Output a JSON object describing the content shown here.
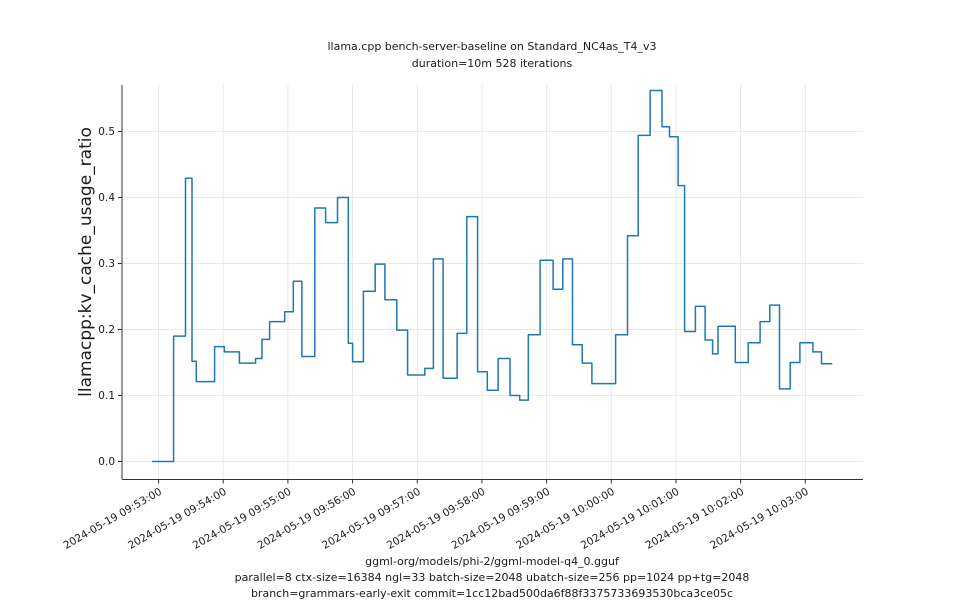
{
  "chart_data": {
    "type": "line",
    "step": true,
    "grid": true,
    "legend": "none",
    "title": "llama.cpp bench-server-baseline on Standard_NC4as_T4_v3",
    "subtitle": "duration=10m 528 iterations",
    "ylabel": "llamacpp:kv_cache_usage_ratio",
    "xlabel_lines": {
      "line1": "ggml-org/models/phi-2/ggml-model-q4_0.gguf",
      "line2": "parallel=8 ctx-size=16384 ngl=33 batch-size=2048 ubatch-size=256 pp=1024 pp+tg=2048",
      "line3": "branch=grammars-early-exit commit=1cc12bad500da6f88f3375733693530bca3ce05c"
    },
    "x_ticks": [
      {
        "t": 0,
        "label": "2024-05-19 09:53:00"
      },
      {
        "t": 60,
        "label": "2024-05-19 09:54:00"
      },
      {
        "t": 120,
        "label": "2024-05-19 09:55:00"
      },
      {
        "t": 180,
        "label": "2024-05-19 09:56:00"
      },
      {
        "t": 240,
        "label": "2024-05-19 09:57:00"
      },
      {
        "t": 300,
        "label": "2024-05-19 09:58:00"
      },
      {
        "t": 360,
        "label": "2024-05-19 09:59:00"
      },
      {
        "t": 420,
        "label": "2024-05-19 10:00:00"
      },
      {
        "t": 480,
        "label": "2024-05-19 10:01:00"
      },
      {
        "t": 540,
        "label": "2024-05-19 10:02:00"
      },
      {
        "t": 600,
        "label": "2024-05-19 10:03:00"
      }
    ],
    "y_ticks": [
      "0.0",
      "0.1",
      "0.2",
      "0.3",
      "0.4",
      "0.5"
    ],
    "xlim_seconds": [
      -33.9,
      653.5
    ],
    "ylim": [
      -0.0273,
      0.5704
    ],
    "series": [
      {
        "name": "llamacpp:kv_cache_usage_ratio",
        "color": "#1f77b4",
        "t_end": 625,
        "points": [
          [
            -6,
            0.0
          ],
          [
            14,
            0.19
          ],
          [
            25,
            0.429
          ],
          [
            31,
            0.152
          ],
          [
            35,
            0.121
          ],
          [
            52,
            0.174
          ],
          [
            61,
            0.166
          ],
          [
            75,
            0.149
          ],
          [
            90,
            0.156
          ],
          [
            96,
            0.185
          ],
          [
            103,
            0.212
          ],
          [
            117,
            0.227
          ],
          [
            125,
            0.273
          ],
          [
            133,
            0.159
          ],
          [
            145,
            0.384
          ],
          [
            155,
            0.362
          ],
          [
            166,
            0.4
          ],
          [
            176,
            0.179
          ],
          [
            180,
            0.151
          ],
          [
            190,
            0.258
          ],
          [
            201,
            0.299
          ],
          [
            210,
            0.245
          ],
          [
            221,
            0.199
          ],
          [
            231,
            0.131
          ],
          [
            247,
            0.141
          ],
          [
            255,
            0.307
          ],
          [
            264,
            0.126
          ],
          [
            277,
            0.194
          ],
          [
            286,
            0.371
          ],
          [
            296,
            0.136
          ],
          [
            305,
            0.108
          ],
          [
            315,
            0.156
          ],
          [
            326,
            0.1
          ],
          [
            335,
            0.093
          ],
          [
            343,
            0.192
          ],
          [
            354,
            0.305
          ],
          [
            366,
            0.261
          ],
          [
            375,
            0.307
          ],
          [
            384,
            0.177
          ],
          [
            393,
            0.149
          ],
          [
            402,
            0.118
          ],
          [
            424,
            0.192
          ],
          [
            435,
            0.342
          ],
          [
            445,
            0.494
          ],
          [
            456,
            0.562
          ],
          [
            467,
            0.507
          ],
          [
            474,
            0.492
          ],
          [
            482,
            0.418
          ],
          [
            488,
            0.197
          ],
          [
            498,
            0.235
          ],
          [
            507,
            0.184
          ],
          [
            514,
            0.163
          ],
          [
            519,
            0.205
          ],
          [
            535,
            0.15
          ],
          [
            547,
            0.18
          ],
          [
            558,
            0.212
          ],
          [
            567,
            0.237
          ],
          [
            576,
            0.11
          ],
          [
            586,
            0.15
          ],
          [
            595,
            0.18
          ],
          [
            607,
            0.166
          ],
          [
            615,
            0.148
          ]
        ]
      }
    ],
    "colors": {
      "line": "#1f77b4",
      "grid": "#e5e5e5",
      "spine": "#333333",
      "text": "#1a1a1a"
    }
  }
}
